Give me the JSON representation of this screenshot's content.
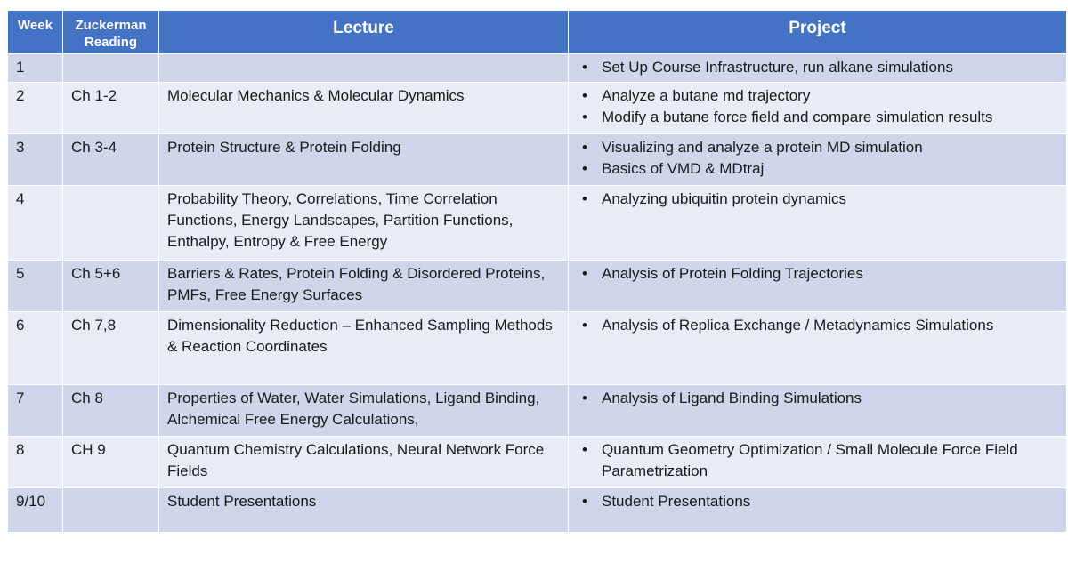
{
  "headers": {
    "week": "Week",
    "reading": "Zuckerman Reading",
    "lecture": "Lecture",
    "project": "Project"
  },
  "rows": [
    {
      "week": "1",
      "reading": "",
      "lecture": "",
      "projects": [
        "Set Up Course Infrastructure, run alkane simulations"
      ]
    },
    {
      "week": "2",
      "reading": "Ch 1-2",
      "lecture": "Molecular Mechanics &  Molecular Dynamics",
      "projects": [
        "Analyze a butane md trajectory",
        "Modify a butane force field and compare simulation results"
      ]
    },
    {
      "week": "3",
      "reading": "Ch 3-4",
      "lecture": "Protein Structure & Protein Folding",
      "projects": [
        "Visualizing and analyze a protein MD simulation",
        "Basics of VMD & MDtraj"
      ]
    },
    {
      "week": "4",
      "reading": "",
      "lecture": "Probability Theory, Correlations, Time Correlation Functions, Energy Landscapes, Partition Functions, Enthalpy, Entropy & Free Energy",
      "projects": [
        "Analyzing ubiquitin protein dynamics"
      ]
    },
    {
      "week": "5",
      "reading": "Ch 5+6",
      "lecture": "Barriers & Rates, Protein Folding & Disordered Proteins, PMFs, Free Energy Surfaces",
      "projects": [
        "Analysis of Protein Folding Trajectories"
      ]
    },
    {
      "week": "6",
      "reading": "Ch 7,8",
      "lecture": "Dimensionality Reduction – Enhanced Sampling Methods & Reaction Coordinates",
      "projects": [
        "Analysis of Replica Exchange / Metadynamics Simulations"
      ]
    },
    {
      "week": "7",
      "reading": "Ch 8",
      "lecture": "Properties of Water, Water Simulations, Ligand Binding, Alchemical Free Energy Calculations,",
      "projects": [
        "Analysis of Ligand Binding Simulations"
      ]
    },
    {
      "week": "8",
      "reading": "CH 9",
      "lecture": "Quantum Chemistry Calculations, Neural Network Force Fields",
      "projects": [
        "Quantum Geometry Optimization / Small Molecule Force Field Parametrization"
      ]
    },
    {
      "week": "9/10",
      "reading": "",
      "lecture": "Student Presentations",
      "projects": [
        "Student Presentations"
      ]
    }
  ],
  "colors": {
    "header_bg": "#4472c4",
    "row_dark": "#cfd5ea",
    "row_light": "#e9ebf5"
  }
}
